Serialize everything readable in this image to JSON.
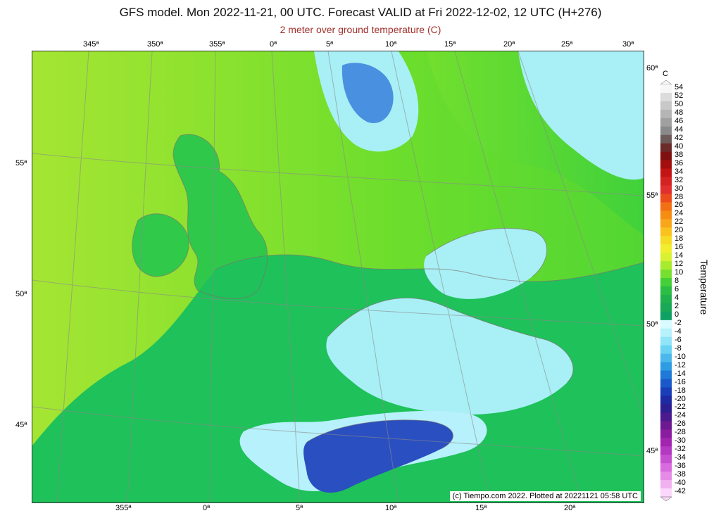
{
  "header": {
    "title": "GFS model. Mon 2022-11-21, 00 UTC. Forecast VALID at Fri 2022-12-02, 12 UTC (H+276)",
    "subtitle": "2 meter over ground temperature (C)"
  },
  "map": {
    "credit": "(c) Tiempo.com 2022. Plotted at 20221121 05:58 UTC",
    "top_lon_labels": [
      "345ª",
      "350ª",
      "355ª",
      "0ª",
      "5ª",
      "10ª",
      "15ª",
      "20ª",
      "25ª",
      "30ª"
    ],
    "bottom_lon_labels": [
      "355ª",
      "0ª",
      "5ª",
      "10ª",
      "15ª",
      "20ª"
    ],
    "left_lat_labels": [
      "55ª",
      "50ª",
      "45ª"
    ],
    "right_lat_labels": [
      "60ª",
      "55ª",
      "50ª",
      "45ª"
    ],
    "colors": {
      "very_cold": "#2030b0",
      "cold": "#4a90e0",
      "cool": "#a8f0f6",
      "mild": "#1fc15a",
      "warm": "#79e62a",
      "hot": "#f5f23a"
    }
  },
  "legend": {
    "unit": "C",
    "title": "Temperature",
    "values": [
      "54",
      "52",
      "50",
      "48",
      "46",
      "44",
      "42",
      "40",
      "38",
      "36",
      "34",
      "32",
      "30",
      "28",
      "26",
      "24",
      "22",
      "20",
      "18",
      "16",
      "14",
      "12",
      "10",
      "8",
      "6",
      "4",
      "2",
      "0",
      "-2",
      "-4",
      "-6",
      "-8",
      "-10",
      "-12",
      "-14",
      "-16",
      "-18",
      "-20",
      "-22",
      "-24",
      "-26",
      "-28",
      "-30",
      "-32",
      "-34",
      "-36",
      "-38",
      "-40",
      "-42"
    ],
    "colors": [
      "#f7f7f7",
      "#dcdcdc",
      "#c8c8c8",
      "#b5b5b5",
      "#a0a0a0",
      "#8a8a8a",
      "#6d5a5a",
      "#6b2b2b",
      "#7f1111",
      "#a30e0e",
      "#c31414",
      "#d42222",
      "#e12e2e",
      "#ec4b1c",
      "#f36f14",
      "#f68c12",
      "#f9a61b",
      "#f9c21e",
      "#f7dc27",
      "#f2ee2f",
      "#d8f233",
      "#a8ea2d",
      "#77df2f",
      "#45cf39",
      "#2bbd44",
      "#20b14e",
      "#18a856",
      "#0fa063",
      "#d8fbff",
      "#b7f1fb",
      "#90e5f8",
      "#6ad2f3",
      "#4bb8ec",
      "#2d9ce3",
      "#1f79d7",
      "#1a59c9",
      "#1a3db8",
      "#1d2aa2",
      "#2d1e91",
      "#4c1a8f",
      "#6c1992",
      "#8a1c9f",
      "#a125b0",
      "#b438c2",
      "#c64fd0",
      "#d86bdd",
      "#e68be6",
      "#f1b1f1",
      "#fbd7fb"
    ]
  }
}
